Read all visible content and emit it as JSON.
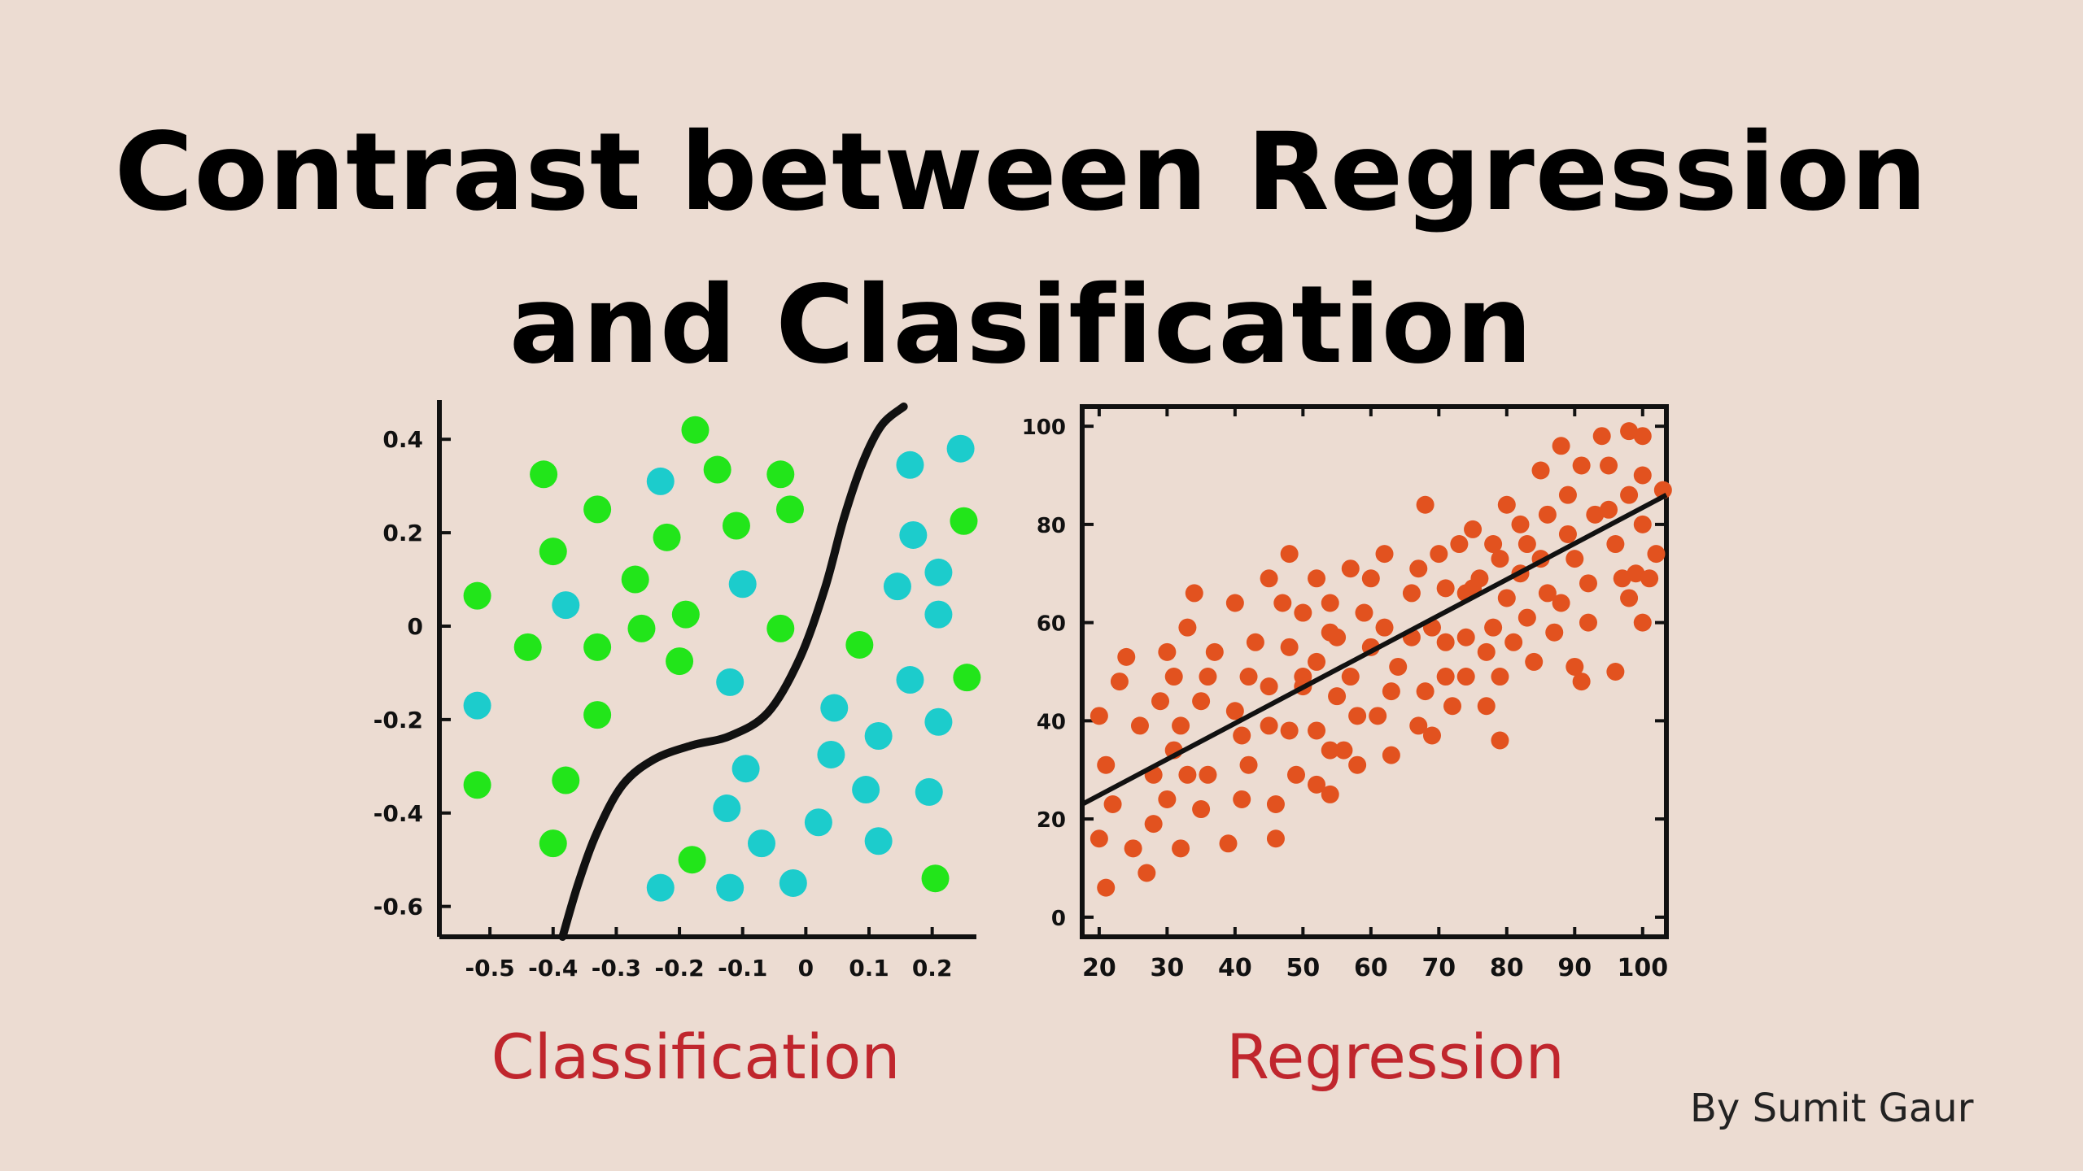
{
  "title": "Contrast between Regression and Clasification",
  "byline": "By Sumit Gaur",
  "colors": {
    "background": "#ecdcd2",
    "green": "#22e51a",
    "cyan": "#1ccccc",
    "orange": "#e2521f",
    "label_red": "#c0262d"
  },
  "chart_data": [
    {
      "type": "scatter",
      "caption": "Classification",
      "xlim": [
        -0.58,
        0.27
      ],
      "ylim": [
        -0.665,
        0.47
      ],
      "x_ticks": [
        -0.5,
        -0.4,
        -0.3,
        -0.2,
        -0.1,
        0,
        0.1,
        0.2
      ],
      "x_tick_labels": [
        "-0.5",
        "-0.4",
        "-0.3",
        "-0.2",
        "-0.1",
        "0",
        "0.1",
        "0.2"
      ],
      "y_ticks": [
        0.4,
        0.2,
        0,
        -0.2,
        -0.4,
        -0.6
      ],
      "y_tick_labels": [
        "0.4",
        "0.2",
        "0",
        "-0.2",
        "-0.4",
        "-0.6"
      ],
      "boundary": [
        [
          -0.385,
          -0.665
        ],
        [
          -0.36,
          -0.55
        ],
        [
          -0.33,
          -0.44
        ],
        [
          -0.29,
          -0.34
        ],
        [
          -0.24,
          -0.285
        ],
        [
          -0.18,
          -0.255
        ],
        [
          -0.12,
          -0.235
        ],
        [
          -0.06,
          -0.185
        ],
        [
          -0.01,
          -0.07
        ],
        [
          0.03,
          0.08
        ],
        [
          0.06,
          0.23
        ],
        [
          0.09,
          0.35
        ],
        [
          0.12,
          0.43
        ],
        [
          0.155,
          0.47
        ]
      ],
      "series": [
        {
          "points": [
            [
              -0.175,
              0.42
            ],
            [
              -0.415,
              0.325
            ],
            [
              -0.14,
              0.335
            ],
            [
              -0.04,
              0.325
            ],
            [
              -0.33,
              0.25
            ],
            [
              -0.025,
              0.25
            ],
            [
              -0.4,
              0.16
            ],
            [
              -0.11,
              0.215
            ],
            [
              -0.22,
              0.19
            ],
            [
              -0.27,
              0.1
            ],
            [
              -0.52,
              0.065
            ],
            [
              -0.19,
              0.025
            ],
            [
              -0.26,
              -0.005
            ],
            [
              -0.04,
              -0.005
            ],
            [
              -0.44,
              -0.045
            ],
            [
              -0.33,
              -0.045
            ],
            [
              -0.2,
              -0.075
            ],
            [
              0.085,
              -0.04
            ],
            [
              -0.33,
              -0.19
            ],
            [
              0.25,
              0.225
            ],
            [
              0.255,
              -0.11
            ],
            [
              -0.52,
              -0.34
            ],
            [
              -0.38,
              -0.33
            ],
            [
              -0.4,
              -0.465
            ],
            [
              -0.18,
              -0.5
            ],
            [
              0.205,
              -0.54
            ]
          ]
        },
        {
          "points": [
            [
              -0.23,
              0.31
            ],
            [
              0.165,
              0.345
            ],
            [
              0.245,
              0.38
            ],
            [
              0.17,
              0.195
            ],
            [
              0.21,
              0.115
            ],
            [
              0.145,
              0.085
            ],
            [
              -0.1,
              0.09
            ],
            [
              -0.38,
              0.045
            ],
            [
              0.21,
              0.025
            ],
            [
              -0.12,
              -0.12
            ],
            [
              0.165,
              -0.115
            ],
            [
              0.045,
              -0.175
            ],
            [
              -0.52,
              -0.17
            ],
            [
              0.21,
              -0.205
            ],
            [
              0.115,
              -0.235
            ],
            [
              0.04,
              -0.275
            ],
            [
              -0.095,
              -0.305
            ],
            [
              0.095,
              -0.35
            ],
            [
              0.195,
              -0.355
            ],
            [
              -0.125,
              -0.39
            ],
            [
              0.02,
              -0.42
            ],
            [
              0.115,
              -0.46
            ],
            [
              -0.07,
              -0.465
            ],
            [
              -0.23,
              -0.56
            ],
            [
              -0.12,
              -0.56
            ],
            [
              -0.02,
              -0.55
            ]
          ]
        }
      ]
    },
    {
      "type": "scatter",
      "caption": "Regression",
      "xlim": [
        17.5,
        103.5
      ],
      "ylim": [
        -4,
        104
      ],
      "x_ticks": [
        20,
        30,
        40,
        50,
        60,
        70,
        80,
        90,
        100
      ],
      "x_tick_labels": [
        "20",
        "30",
        "40",
        "50",
        "60",
        "70",
        "80",
        "90",
        "100"
      ],
      "y_ticks": [
        0,
        20,
        40,
        60,
        80,
        100
      ],
      "y_tick_labels": [
        "0",
        "20",
        "40",
        "60",
        "80",
        "100"
      ],
      "fit_line": [
        [
          17.5,
          23
        ],
        [
          103.5,
          86
        ]
      ],
      "series": [
        {
          "points": [
            [
              20,
              41
            ],
            [
              20,
              16
            ],
            [
              21,
              31
            ],
            [
              21,
              6
            ],
            [
              22,
              23
            ],
            [
              23,
              48
            ],
            [
              24,
              53
            ],
            [
              25,
              14
            ],
            [
              26,
              39
            ],
            [
              27,
              9
            ],
            [
              28,
              19
            ],
            [
              28,
              29
            ],
            [
              29,
              44
            ],
            [
              30,
              54
            ],
            [
              30,
              24
            ],
            [
              31,
              49
            ],
            [
              31,
              34
            ],
            [
              32,
              14
            ],
            [
              32,
              39
            ],
            [
              33,
              59
            ],
            [
              33,
              29
            ],
            [
              34,
              66
            ],
            [
              35,
              44
            ],
            [
              35,
              22
            ],
            [
              36,
              49
            ],
            [
              36,
              29
            ],
            [
              37,
              54
            ],
            [
              39,
              15
            ],
            [
              40,
              64
            ],
            [
              40,
              42
            ],
            [
              41,
              37
            ],
            [
              41,
              24
            ],
            [
              42,
              49
            ],
            [
              42,
              31
            ],
            [
              43,
              56
            ],
            [
              45,
              69
            ],
            [
              45,
              47
            ],
            [
              45,
              39
            ],
            [
              46,
              23
            ],
            [
              46,
              16
            ],
            [
              47,
              64
            ],
            [
              48,
              74
            ],
            [
              48,
              55
            ],
            [
              48,
              38
            ],
            [
              49,
              29
            ],
            [
              50,
              62
            ],
            [
              50,
              49
            ],
            [
              50,
              47
            ],
            [
              52,
              69
            ],
            [
              52,
              52
            ],
            [
              52,
              38
            ],
            [
              52,
              27
            ],
            [
              54,
              64
            ],
            [
              54,
              58
            ],
            [
              54,
              34
            ],
            [
              54,
              25
            ],
            [
              55,
              57
            ],
            [
              55,
              45
            ],
            [
              56,
              34
            ],
            [
              57,
              71
            ],
            [
              57,
              49
            ],
            [
              58,
              41
            ],
            [
              58,
              31
            ],
            [
              59,
              62
            ],
            [
              60,
              69
            ],
            [
              60,
              55
            ],
            [
              61,
              41
            ],
            [
              62,
              74
            ],
            [
              62,
              59
            ],
            [
              63,
              46
            ],
            [
              63,
              33
            ],
            [
              64,
              51
            ],
            [
              66,
              66
            ],
            [
              66,
              57
            ],
            [
              67,
              39
            ],
            [
              67,
              71
            ],
            [
              68,
              46
            ],
            [
              68,
              84
            ],
            [
              69,
              59
            ],
            [
              69,
              37
            ],
            [
              70,
              74
            ],
            [
              71,
              56
            ],
            [
              71,
              49
            ],
            [
              71,
              67
            ],
            [
              72,
              43
            ],
            [
              73,
              76
            ],
            [
              74,
              66
            ],
            [
              74,
              57
            ],
            [
              74,
              49
            ],
            [
              75,
              79
            ],
            [
              75,
              67
            ],
            [
              76,
              69
            ],
            [
              77,
              54
            ],
            [
              77,
              43
            ],
            [
              78,
              76
            ],
            [
              78,
              59
            ],
            [
              79,
              73
            ],
            [
              79,
              36
            ],
            [
              79,
              49
            ],
            [
              80,
              84
            ],
            [
              80,
              65
            ],
            [
              81,
              56
            ],
            [
              82,
              80
            ],
            [
              82,
              70
            ],
            [
              83,
              76
            ],
            [
              83,
              61
            ],
            [
              84,
              52
            ],
            [
              85,
              91
            ],
            [
              85,
              73
            ],
            [
              86,
              66
            ],
            [
              86,
              82
            ],
            [
              87,
              58
            ],
            [
              88,
              64
            ],
            [
              88,
              96
            ],
            [
              89,
              78
            ],
            [
              89,
              86
            ],
            [
              90,
              73
            ],
            [
              90,
              51
            ],
            [
              91,
              92
            ],
            [
              91,
              48
            ],
            [
              92,
              60
            ],
            [
              92,
              68
            ],
            [
              93,
              82
            ],
            [
              94,
              98
            ],
            [
              95,
              83
            ],
            [
              95,
              92
            ],
            [
              96,
              76
            ],
            [
              96,
              50
            ],
            [
              97,
              69
            ],
            [
              98,
              99
            ],
            [
              98,
              65
            ],
            [
              98,
              86
            ],
            [
              99,
              70
            ],
            [
              100,
              80
            ],
            [
              100,
              60
            ],
            [
              100,
              90
            ],
            [
              100,
              98
            ],
            [
              101,
              69
            ],
            [
              102,
              74
            ],
            [
              103,
              87
            ]
          ]
        }
      ]
    }
  ]
}
